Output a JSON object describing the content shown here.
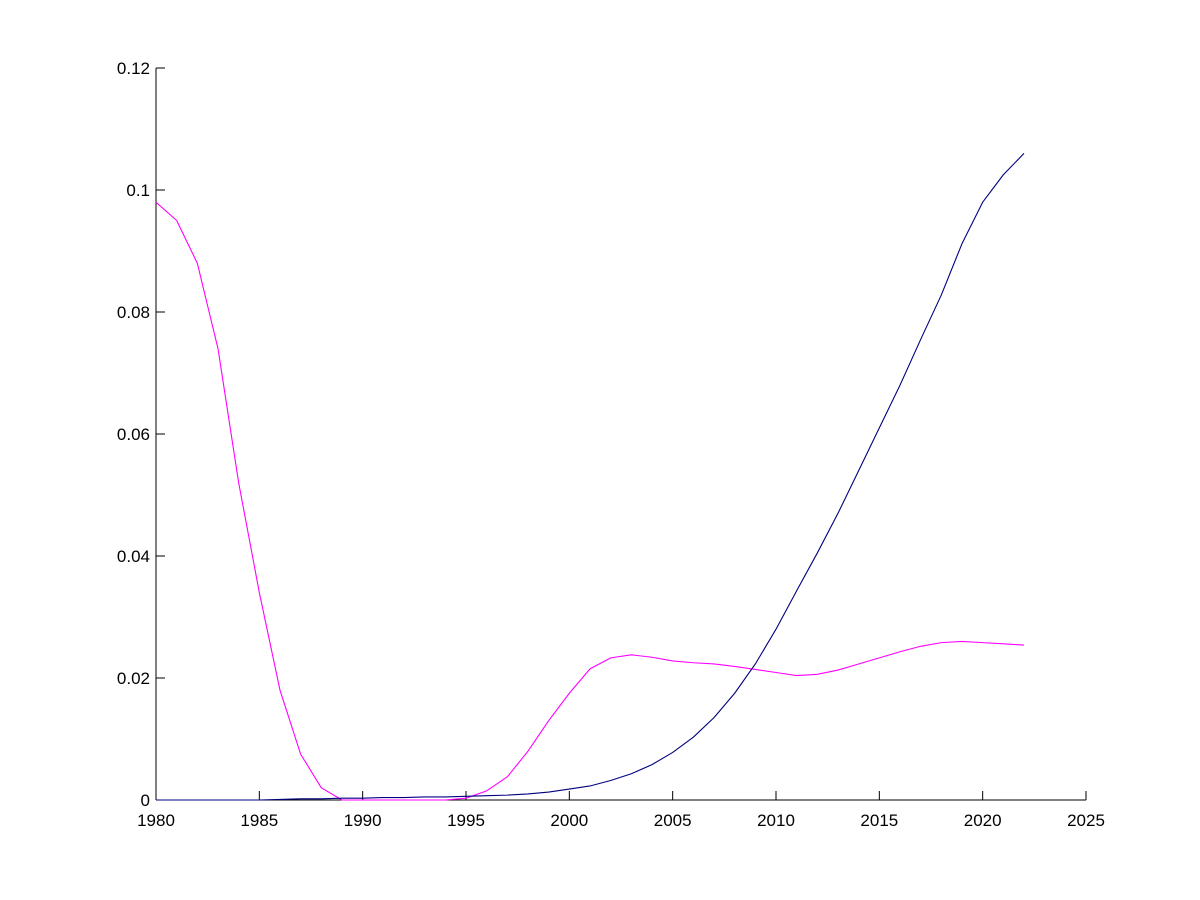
{
  "chart_data": {
    "type": "line",
    "title": "",
    "xlabel": "",
    "ylabel": "",
    "xlim": [
      1980,
      2025
    ],
    "ylim": [
      0,
      0.12
    ],
    "x_ticks": [
      1980,
      1985,
      1990,
      1995,
      2000,
      2005,
      2010,
      2015,
      2020,
      2025
    ],
    "x_tick_labels": [
      "1980",
      "1985",
      "1990",
      "1995",
      "2000",
      "2005",
      "2010",
      "2015",
      "2020",
      "2025"
    ],
    "y_ticks": [
      0,
      0.02,
      0.04,
      0.06,
      0.08,
      0.1,
      0.12
    ],
    "y_tick_labels": [
      "0",
      "0.02",
      "0.04",
      "0.06",
      "0.08",
      "0.1",
      "0.12"
    ],
    "grid": false,
    "legend": "none",
    "series": [
      {
        "color": "#ff00ff",
        "x": [
          1980,
          1981,
          1982,
          1983,
          1984,
          1985,
          1986,
          1987,
          1988,
          1989,
          1990,
          1991,
          1992,
          1993,
          1994,
          1995,
          1996,
          1997,
          1998,
          1999,
          2000,
          2001,
          2002,
          2003,
          2004,
          2005,
          2006,
          2007,
          2008,
          2009,
          2010,
          2011,
          2012,
          2013,
          2014,
          2015,
          2016,
          2017,
          2018,
          2019,
          2020,
          2021,
          2022
        ],
        "y": [
          0.098,
          0.095,
          0.088,
          0.074,
          0.052,
          0.034,
          0.018,
          0.0075,
          0.002,
          0.0,
          0.0,
          0.0,
          0.0,
          0.0,
          0.0,
          0.0003,
          0.0015,
          0.0038,
          0.008,
          0.013,
          0.0175,
          0.0215,
          0.0233,
          0.0238,
          0.0234,
          0.0228,
          0.0225,
          0.0223,
          0.0219,
          0.0214,
          0.0209,
          0.0204,
          0.0206,
          0.0213,
          0.0223,
          0.0233,
          0.0243,
          0.0252,
          0.0258,
          0.026,
          0.0258,
          0.0256,
          0.0254
        ]
      },
      {
        "color": "#000080",
        "x": [
          1980,
          1981,
          1982,
          1983,
          1984,
          1985,
          1986,
          1987,
          1988,
          1989,
          1990,
          1991,
          1992,
          1993,
          1994,
          1995,
          1996,
          1997,
          1998,
          1999,
          2000,
          2001,
          2002,
          2003,
          2004,
          2005,
          2006,
          2007,
          2008,
          2009,
          2010,
          2011,
          2012,
          2013,
          2014,
          2015,
          2016,
          2017,
          2018,
          2019,
          2020,
          2021,
          2022
        ],
        "y": [
          0.0,
          0.0,
          0.0,
          0.0,
          0.0,
          0.0,
          0.0001,
          0.0002,
          0.0002,
          0.0003,
          0.0003,
          0.0004,
          0.0004,
          0.0005,
          0.0005,
          0.0006,
          0.0007,
          0.0008,
          0.001,
          0.0013,
          0.0018,
          0.0023,
          0.0032,
          0.0043,
          0.0058,
          0.0078,
          0.0103,
          0.0135,
          0.0175,
          0.0223,
          0.028,
          0.0343,
          0.0405,
          0.047,
          0.054,
          0.061,
          0.068,
          0.0755,
          0.0828,
          0.0912,
          0.098,
          0.1025,
          0.106
        ]
      }
    ]
  }
}
